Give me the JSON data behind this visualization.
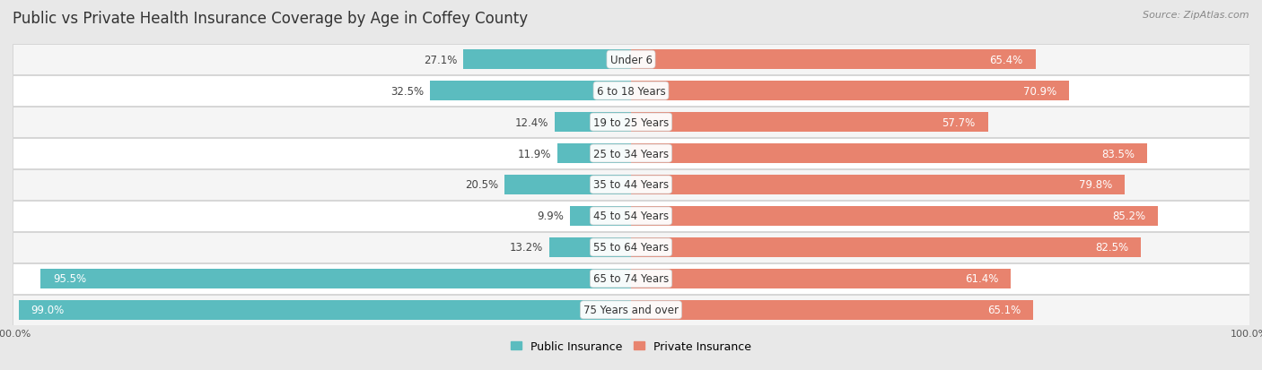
{
  "title": "Public vs Private Health Insurance Coverage by Age in Coffey County",
  "source": "Source: ZipAtlas.com",
  "categories": [
    "Under 6",
    "6 to 18 Years",
    "19 to 25 Years",
    "25 to 34 Years",
    "35 to 44 Years",
    "45 to 54 Years",
    "55 to 64 Years",
    "65 to 74 Years",
    "75 Years and over"
  ],
  "public_values": [
    27.1,
    32.5,
    12.4,
    11.9,
    20.5,
    9.9,
    13.2,
    95.5,
    99.0
  ],
  "private_values": [
    65.4,
    70.9,
    57.7,
    83.5,
    79.8,
    85.2,
    82.5,
    61.4,
    65.1
  ],
  "public_color": "#5bbcbf",
  "private_color": "#e8836e",
  "private_color_light": "#f0a898",
  "public_label": "Public Insurance",
  "private_label": "Private Insurance",
  "bg_color": "#e8e8e8",
  "row_bg_even": "#f5f5f5",
  "row_bg_odd": "#ffffff",
  "title_fontsize": 12,
  "source_fontsize": 8,
  "cat_fontsize": 8.5,
  "value_fontsize": 8.5,
  "axis_label_fontsize": 8,
  "legend_fontsize": 9,
  "max_val": 100.0
}
